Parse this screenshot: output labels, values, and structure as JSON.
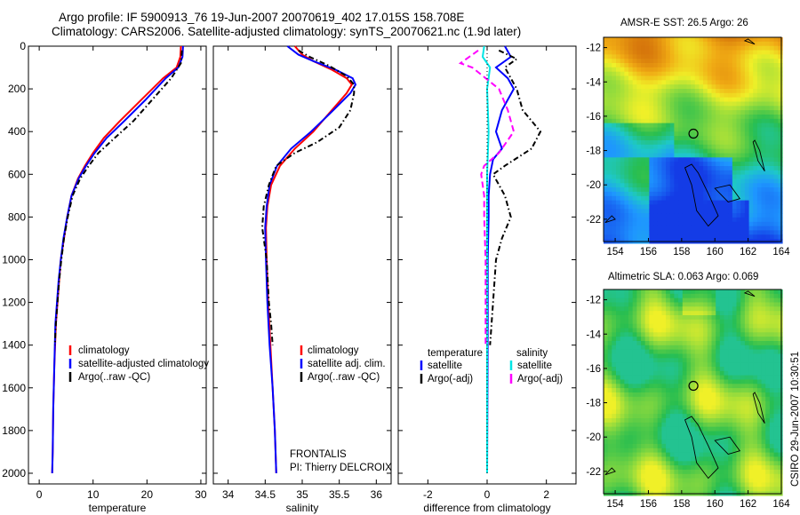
{
  "header": {
    "title_line1": "Argo profile: IF 5900913_76 19-Jun-2007 20070619_402 17.015S 158.708E",
    "title_line2": "Climatology: CARS2006. Satellite-adjusted climatology: synTS_20070621.nc (1.9d later)"
  },
  "colors": {
    "climatology": "#ff0000",
    "satellite": "#0000ff",
    "argo": "#000000",
    "salinity_satellite": "#00e5e5",
    "salinity_argo": "#ff00ff"
  },
  "chart_data": [
    {
      "id": "temperature",
      "type": "line",
      "xlabel": "temperature",
      "ylabel": "",
      "xlim": [
        -2,
        31
      ],
      "ylim": [
        2050,
        0
      ],
      "xticks": [
        0,
        10,
        20,
        30
      ],
      "yticks": [
        0,
        200,
        400,
        600,
        800,
        1000,
        1200,
        1400,
        1600,
        1800,
        2000
      ],
      "legend": [
        "climatology",
        "satellite-adjusted climatology",
        "Argo(..raw -QC)"
      ],
      "legend_position": "lower-center",
      "series": [
        {
          "name": "climatology",
          "color": "#ff0000",
          "dash": "",
          "x": [
            26.3,
            26.2,
            25.5,
            23,
            19,
            15,
            12,
            10,
            8.5,
            7.2,
            6,
            5.2,
            4.6,
            4,
            3.7,
            3.4,
            3.1,
            2.8,
            2.6,
            2.5,
            2.4
          ],
          "y": [
            0,
            50,
            100,
            150,
            250,
            350,
            430,
            500,
            560,
            620,
            700,
            800,
            900,
            1000,
            1100,
            1200,
            1300,
            1500,
            1700,
            1900,
            2000
          ]
        },
        {
          "name": "satellite-adjusted climatology",
          "color": "#0000ff",
          "dash": "",
          "x": [
            26.7,
            26.6,
            25.8,
            23.5,
            19.8,
            15.8,
            12.5,
            10.3,
            8.7,
            7.3,
            6,
            5.2,
            4.5,
            4,
            3.6,
            3.3,
            3,
            2.8,
            2.6,
            2.5,
            2.4
          ],
          "y": [
            0,
            50,
            100,
            150,
            250,
            350,
            430,
            500,
            560,
            620,
            700,
            800,
            900,
            1000,
            1100,
            1200,
            1300,
            1500,
            1700,
            1900,
            2000
          ]
        },
        {
          "name": "Argo(..raw -QC)",
          "color": "#000000",
          "dash": "6,3,1.5,3",
          "x": [
            26.5,
            26.4,
            26.3,
            24.5,
            21,
            17.5,
            14,
            11,
            9.2,
            7.6,
            6.2,
            5.3,
            4.6,
            4.1,
            3.7,
            3.4,
            3.1,
            2.9
          ],
          "y": [
            20,
            50,
            80,
            150,
            250,
            350,
            430,
            500,
            560,
            620,
            700,
            800,
            900,
            1000,
            1100,
            1200,
            1300,
            1400
          ]
        }
      ]
    },
    {
      "id": "salinity",
      "type": "line",
      "xlabel": "salinity",
      "xlim": [
        33.8,
        36.2
      ],
      "ylim": [
        2050,
        0
      ],
      "xticks": [
        34,
        34.5,
        35,
        35.5,
        36
      ],
      "legend": [
        "climatology",
        "satellite adj. clim.",
        "Argo(..raw -QC)"
      ],
      "legend_position": "lower-center",
      "annotations": [
        "FRONTALIS",
        "PI: Thierry DELCROIX"
      ],
      "series": [
        {
          "name": "climatology",
          "color": "#ff0000",
          "dash": "",
          "x": [
            34.9,
            35,
            35.15,
            35.4,
            35.6,
            35.67,
            35.6,
            35.4,
            35.15,
            34.9,
            34.7,
            34.58,
            34.53,
            34.51,
            34.52,
            34.54,
            34.57,
            34.6,
            34.63,
            34.65
          ],
          "y": [
            0,
            40,
            70,
            110,
            150,
            180,
            220,
            300,
            400,
            480,
            560,
            650,
            750,
            850,
            1000,
            1200,
            1400,
            1600,
            1800,
            2000
          ]
        },
        {
          "name": "satellite adj. clim.",
          "color": "#0000ff",
          "dash": "",
          "x": [
            34.8,
            34.95,
            35.15,
            35.45,
            35.68,
            35.72,
            35.65,
            35.42,
            35.12,
            34.85,
            34.66,
            34.56,
            34.52,
            34.5,
            34.51,
            34.53,
            34.56,
            34.6,
            34.63,
            34.65
          ],
          "y": [
            0,
            40,
            70,
            110,
            150,
            180,
            220,
            300,
            400,
            480,
            560,
            650,
            750,
            850,
            1000,
            1200,
            1400,
            1600,
            1800,
            2000
          ]
        },
        {
          "name": "Argo(..raw -QC)",
          "color": "#000000",
          "dash": "6,3,1.5,3",
          "x": [
            34.95,
            35.1,
            35.35,
            35.6,
            35.7,
            35.7,
            35.65,
            35.5,
            35.2,
            34.9,
            34.65,
            34.55,
            34.48,
            34.46,
            34.52,
            34.55,
            34.58,
            34.6
          ],
          "y": [
            20,
            50,
            90,
            140,
            180,
            220,
            300,
            380,
            450,
            500,
            560,
            650,
            750,
            850,
            1000,
            1200,
            1300,
            1400
          ]
        }
      ]
    },
    {
      "id": "difference",
      "type": "line",
      "xlabel": "difference from climatology",
      "xlim": [
        -3,
        3
      ],
      "ylim": [
        2050,
        0
      ],
      "xticks": [
        -2,
        0,
        2
      ],
      "legend_left_title": "temperature",
      "legend_left": [
        "satellite",
        "Argo(-adj)"
      ],
      "legend_right_title": "salinity",
      "legend_right": [
        "satellite",
        "Argo(-adj)"
      ],
      "series": [
        {
          "name": "temperature satellite",
          "color": "#0000ff",
          "dash": "",
          "x": [
            0.6,
            0.8,
            0.3,
            0.7,
            0.9,
            0.5,
            0.3,
            0.5,
            0.2,
            0.1,
            0.05,
            0.05,
            0.02,
            0.02,
            0.01,
            0
          ],
          "y": [
            0,
            50,
            100,
            150,
            200,
            300,
            400,
            480,
            530,
            600,
            700,
            800,
            1000,
            1300,
            1700,
            2000
          ]
        },
        {
          "name": "temperature Argo(-adj)",
          "color": "#000000",
          "dash": "6,3,1.5,3",
          "x": [
            0.4,
            1,
            0.6,
            0.8,
            1,
            1.2,
            1.8,
            1.5,
            0.6,
            0.2,
            0.6,
            0.8,
            0.5,
            0.3,
            0.2,
            0.1
          ],
          "y": [
            20,
            60,
            100,
            150,
            200,
            300,
            400,
            480,
            560,
            600,
            700,
            800,
            900,
            1000,
            1200,
            1400
          ]
        },
        {
          "name": "salinity satellite",
          "color": "#00e5e5",
          "dash": "",
          "x": [
            -0.1,
            -0.15,
            0.1,
            0,
            0.05,
            0,
            0,
            0,
            0,
            0
          ],
          "y": [
            0,
            50,
            100,
            200,
            400,
            600,
            800,
            1000,
            1500,
            2000
          ]
        },
        {
          "name": "salinity Argo(-adj)",
          "color": "#ff00ff",
          "dash": "7,4",
          "x": [
            -0.3,
            -0.9,
            -0.5,
            0.4,
            0.7,
            0.9,
            0.4,
            -0.1,
            -0.2,
            -0.1,
            -0.1,
            -0.05,
            -0.05
          ],
          "y": [
            20,
            80,
            100,
            200,
            300,
            400,
            500,
            560,
            600,
            700,
            800,
            1000,
            1400
          ]
        },
        {
          "name": "zero line",
          "color": "#000000",
          "dash": "1,3",
          "x": [
            0,
            0
          ],
          "y": [
            0,
            2000
          ]
        }
      ]
    },
    {
      "id": "sst_map",
      "type": "heatmap",
      "title": "AMSR-E SST: 26.5 Argo: 26",
      "xlim": [
        153.3,
        164
      ],
      "ylim": [
        -23.3,
        -11.4
      ],
      "xticks": [
        154,
        156,
        158,
        160,
        162,
        164
      ],
      "yticks": [
        -12,
        -14,
        -16,
        -18,
        -20,
        -22
      ],
      "profile_location": {
        "lon": 158.708,
        "lat": -17.015
      },
      "field": "sst"
    },
    {
      "id": "sla_map",
      "type": "heatmap",
      "title": "Altimetric SLA: 0.063 Argo: 0.069",
      "xlim": [
        153.3,
        164
      ],
      "ylim": [
        -23.3,
        -11.4
      ],
      "xticks": [
        154,
        156,
        158,
        160,
        162,
        164
      ],
      "yticks": [
        -12,
        -14,
        -16,
        -18,
        -20,
        -22
      ],
      "profile_location": {
        "lon": 158.708,
        "lat": -17.015
      },
      "field": "sla"
    }
  ],
  "footer": {
    "credit": "CSIRO 29-Jun-2007 10:30:51"
  }
}
